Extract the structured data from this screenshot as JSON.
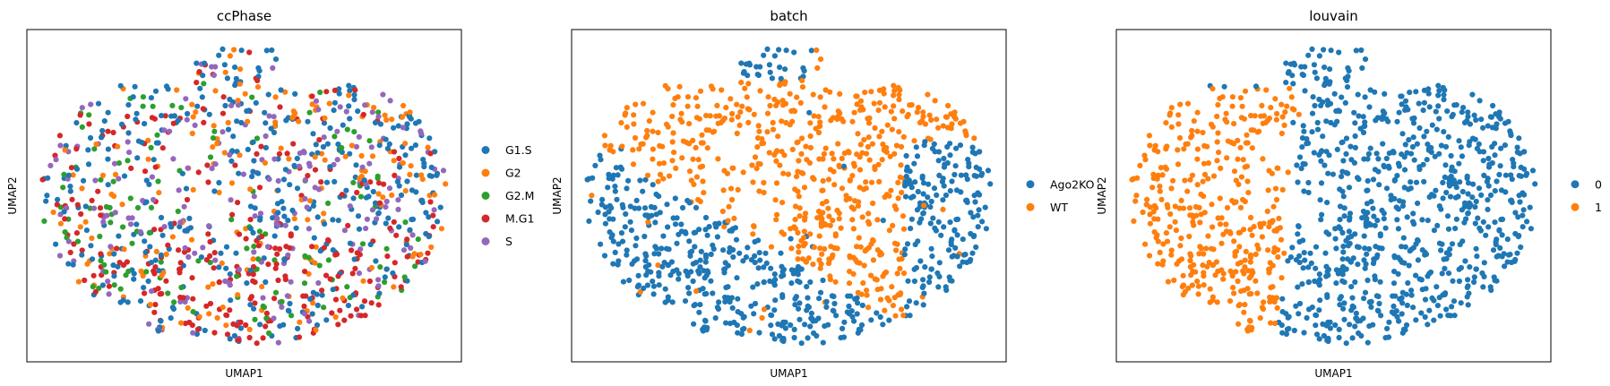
{
  "chart_data": [
    {
      "type": "scatter",
      "title": "ccPhase",
      "xlabel": "UMAP1",
      "ylabel": "UMAP2",
      "xticks": [],
      "yticks": [],
      "grid": false,
      "legend_position": "right",
      "series": [
        {
          "name": "G1.S",
          "color": "#1f77b4"
        },
        {
          "name": "G2",
          "color": "#ff7f0e"
        },
        {
          "name": "G2.M",
          "color": "#2ca02c"
        },
        {
          "name": "M.G1",
          "color": "#d62728"
        },
        {
          "name": "S",
          "color": "#9467bd"
        }
      ]
    },
    {
      "type": "scatter",
      "title": "batch",
      "xlabel": "UMAP1",
      "ylabel": "UMAP2",
      "xticks": [],
      "yticks": [],
      "grid": false,
      "legend_position": "right",
      "series": [
        {
          "name": "Ago2KO",
          "color": "#1f77b4"
        },
        {
          "name": "WT",
          "color": "#ff7f0e"
        }
      ]
    },
    {
      "type": "scatter",
      "title": "louvain",
      "xlabel": "UMAP1",
      "ylabel": "UMAP2",
      "xticks": [],
      "yticks": [],
      "grid": false,
      "legend_position": "right",
      "series": [
        {
          "name": "0",
          "color": "#1f77b4"
        },
        {
          "name": "1",
          "color": "#ff7f0e"
        }
      ]
    }
  ]
}
